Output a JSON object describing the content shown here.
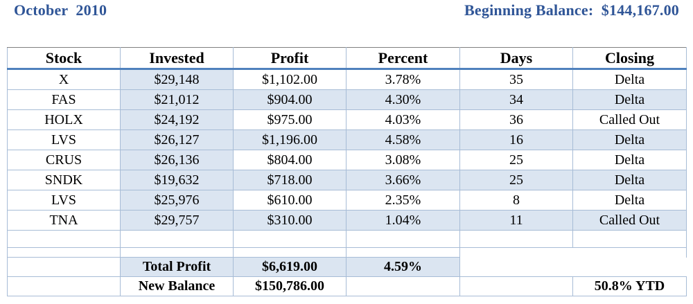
{
  "header": {
    "period": "October  2010",
    "balance_label": "Beginning Balance:",
    "balance_value": "$144,167.00"
  },
  "table": {
    "columns": [
      "Stock",
      "Invested",
      "Profit",
      "Percent",
      "Days",
      "Closing"
    ],
    "rows": [
      [
        "X",
        "$29,148",
        "$1,102.00",
        "3.78%",
        "35",
        "Delta"
      ],
      [
        "FAS",
        "$21,012",
        "$904.00",
        "4.30%",
        "34",
        "Delta"
      ],
      [
        "HOLX",
        "$24,192",
        "$975.00",
        "4.03%",
        "36",
        "Called Out"
      ],
      [
        "LVS",
        "$26,127",
        "$1,196.00",
        "4.58%",
        "16",
        "Delta"
      ],
      [
        "CRUS",
        "$26,136",
        "$804.00",
        "3.08%",
        "25",
        "Delta"
      ],
      [
        "SNDK",
        "$19,632",
        "$718.00",
        "3.66%",
        "25",
        "Delta"
      ],
      [
        "LVS",
        "$25,976",
        "$610.00",
        "2.35%",
        "8",
        "Delta"
      ],
      [
        "TNA",
        "$29,757",
        "$310.00",
        "1.04%",
        "11",
        "Called Out"
      ]
    ]
  },
  "summary": {
    "total_profit_label": "Total Profit",
    "total_profit_value": "$6,619.00",
    "total_profit_percent": "4.59%",
    "new_balance_label": "New Balance",
    "new_balance_value": "$150,786.00",
    "ytd": "50.8% YTD"
  },
  "colors": {
    "header_text": "#2f5597",
    "shade": "#dbe5f1",
    "rule": "#4f81bd"
  }
}
